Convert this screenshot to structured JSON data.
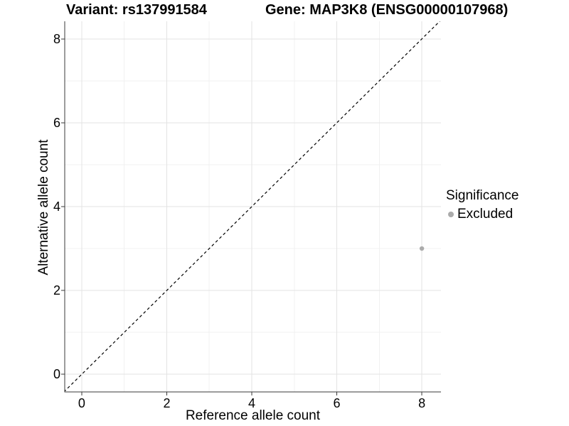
{
  "header": {
    "variant_title": "Variant: rs137991584",
    "gene_title": "Gene: MAP3K8 (ENSG00000107968)"
  },
  "legend": {
    "title": "Significance",
    "items": [
      {
        "label": "Excluded",
        "color": "#ababab"
      }
    ]
  },
  "chart_data": {
    "type": "scatter",
    "title": "",
    "xlabel": "Reference allele count",
    "ylabel": "Alternative allele count",
    "xlim": [
      -0.4,
      8.45
    ],
    "ylim": [
      -0.42,
      8.42
    ],
    "xticks": [
      0,
      2,
      4,
      6,
      8
    ],
    "yticks": [
      0,
      2,
      4,
      6,
      8
    ],
    "minor_xticks": [
      1,
      3,
      5,
      7
    ],
    "minor_yticks": [
      1,
      3,
      5,
      7
    ],
    "grid": true,
    "legend_position": "right",
    "identity_line": {
      "style": "dashed",
      "slope": 1,
      "intercept": 0,
      "color": "#000000"
    },
    "series": [
      {
        "name": "Excluded",
        "color": "#ababab",
        "points": [
          {
            "x": 8,
            "y": 3
          }
        ]
      }
    ],
    "colors": {
      "major_grid": "#e3e3e3",
      "minor_grid": "#f1f1f1",
      "axis": "#383838",
      "text": "#000000",
      "point": "#ababab",
      "background": "#ffffff"
    }
  }
}
